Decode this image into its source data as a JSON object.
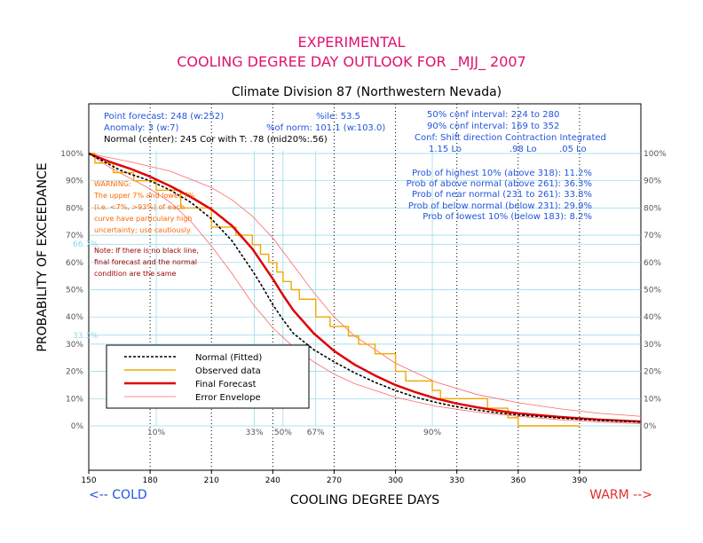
{
  "header": {
    "title_line1": "EXPERIMENTAL",
    "title_line2": "COOLING DEGREE DAY OUTLOOK FOR _MJJ_ 2007",
    "subtitle": "Climate Division 87 (Northwestern Nevada)"
  },
  "info": {
    "point_forecast": "Point forecast: 248 (w:252)",
    "anomaly": "Anomaly: 3 (w:7)",
    "normal": "Normal (center): 245   Cor with T: .78 (mid20%:.56)",
    "pctile": "%ile: 53.5",
    "pct_norm": "%of norm:  101.1 (w:103.0)",
    "conf50": "50% conf interval: 224 to 280",
    "conf90": "90% conf interval: 169 to 352",
    "conf_header": "Conf: Shift direction    Contraction   Integrated",
    "conf_values": "1.15 Lo                 .98 Lo        .05 Lo",
    "prob_highest": "Prob of highest 10% (above 318): 11.2%",
    "prob_above": "Prob of above normal (above 261): 36.3%",
    "prob_near": "Prob of near normal (231 to 261): 33.8%",
    "prob_below": "Prob of below normal (below 231): 29.9%",
    "prob_lowest": "Prob of lowest 10% (below 183): 8.2%"
  },
  "warning": {
    "lines": [
      "WARNING:",
      "The upper 7% and lower 7%",
      "(i.e. <7%, >93%) of each",
      "curve have particulary high",
      "uncertainty; use cautiously."
    ],
    "note_lines": [
      "Note: If there is no black line,",
      "final forecast and  the normal",
      "condition are the same"
    ]
  },
  "footer": {
    "cold": "<-- COLD",
    "warm": "WARM -->"
  },
  "legend": {
    "normal": "Normal (Fitted)",
    "observed": "Observed data",
    "final": "Final Forecast",
    "envelope": "Error Envelope"
  },
  "colors": {
    "title": "#e0126e",
    "info_blue": "#2255dd",
    "forecast_red": "#e00000",
    "observed_orange": "#f0a800",
    "envelope_red": "#ff6666",
    "grid_cyan": "#8fd8e8",
    "warning_orange": "#ff6600",
    "note_brown": "#990000"
  },
  "chart_data": {
    "type": "line",
    "xlabel": "COOLING DEGREE DAYS",
    "ylabel": "PROBABILITY OF EXCEEDANCE",
    "xlim": [
      150,
      420
    ],
    "ylim": [
      0,
      100
    ],
    "x_ticks": [
      150,
      180,
      210,
      240,
      270,
      300,
      330,
      360,
      390
    ],
    "y_ticks": [
      "0%",
      "10%",
      "20%",
      "30%",
      "40%",
      "50%",
      "60%",
      "70%",
      "80%",
      "90%",
      "100%"
    ],
    "tercile_lines": [
      {
        "label": "66.7%",
        "y": 66.7
      },
      {
        "label": "33.3%",
        "y": 33.3
      }
    ],
    "percentile_markers": [
      {
        "label": "10%",
        "x": 183
      },
      {
        "label": "33%",
        "x": 231
      },
      {
        "label": "50%",
        "x": 245
      },
      {
        "label": "67%",
        "x": 261
      },
      {
        "label": "90%",
        "x": 318
      }
    ],
    "series": [
      {
        "name": "Normal (Fitted)",
        "style": "black-dashed",
        "x": [
          150,
          155,
          160,
          165,
          170,
          180,
          190,
          200,
          210,
          220,
          230,
          235,
          240,
          245,
          250,
          260,
          270,
          280,
          290,
          300,
          310,
          320,
          330,
          340,
          350,
          360,
          380,
          400,
          420
        ],
        "y": [
          100,
          98,
          96,
          94,
          92.5,
          90,
          86.5,
          82,
          76,
          68,
          57,
          51,
          44.5,
          39,
          34,
          28,
          23.5,
          19.5,
          16,
          13,
          10.5,
          8.6,
          7,
          5.8,
          4.8,
          4,
          2.9,
          2,
          1.4
        ]
      },
      {
        "name": "Observed data",
        "style": "orange-step",
        "x": [
          150,
          153,
          162,
          172,
          183,
          195,
          210,
          222,
          230,
          234,
          238,
          242,
          245,
          249,
          253,
          261,
          268,
          277,
          282,
          290,
          300,
          305,
          318,
          322,
          330,
          345,
          355,
          360,
          375,
          390
        ],
        "y": [
          100,
          96.5,
          93,
          90,
          86.5,
          80,
          73,
          70,
          66.5,
          63,
          60,
          56.5,
          53,
          50,
          46.5,
          40,
          36.5,
          33,
          30,
          26.5,
          20,
          16.5,
          13,
          10,
          10,
          6.5,
          3,
          0,
          0,
          0
        ]
      },
      {
        "name": "Final Forecast",
        "style": "red-thick",
        "x": [
          150,
          160,
          170,
          180,
          190,
          200,
          210,
          220,
          230,
          240,
          245,
          250,
          260,
          270,
          280,
          290,
          300,
          310,
          320,
          330,
          340,
          350,
          360,
          380,
          400,
          420
        ],
        "y": [
          100,
          97,
          94.5,
          91.5,
          88,
          84,
          79.5,
          73.5,
          65,
          54,
          48,
          42.5,
          34,
          27.5,
          22.5,
          18.5,
          15,
          12.3,
          10,
          8.2,
          6.8,
          5.6,
          4.6,
          3.3,
          2.3,
          1.6
        ]
      },
      {
        "name": "Error Envelope",
        "style": "red-thin",
        "x": [
          150,
          170,
          190,
          210,
          220,
          230,
          240,
          250,
          260,
          270,
          280,
          300,
          320,
          340,
          360,
          380,
          400,
          420
        ],
        "y": [
          100,
          97,
          93.5,
          87.5,
          83,
          77,
          69,
          59,
          49,
          40,
          33,
          23,
          16,
          11.5,
          8.5,
          6.3,
          4.6,
          3.5
        ]
      },
      {
        "name": "Error Envelope",
        "style": "red-thin",
        "x": [
          150,
          160,
          170,
          180,
          190,
          200,
          210,
          220,
          230,
          240,
          250,
          260,
          270,
          280,
          300,
          320,
          340,
          360,
          380,
          400,
          420
        ],
        "y": [
          100,
          95,
          91,
          87,
          82,
          75,
          66,
          56,
          45,
          36,
          29,
          23.5,
          19,
          15.5,
          10.5,
          7.2,
          5,
          3.5,
          2.3,
          1.4,
          0.8
        ]
      }
    ]
  }
}
